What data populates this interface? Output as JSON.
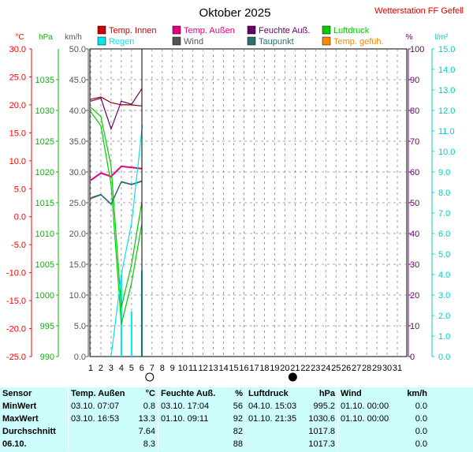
{
  "header": {
    "title": "Oktober 2025",
    "station": "Wetterstation FF Gefell"
  },
  "legend": [
    {
      "label": "Temp. Innen",
      "color": "#cc0000"
    },
    {
      "label": "Temp. Außen",
      "color": "#e6007e"
    },
    {
      "label": "Feuchte Auß.",
      "color": "#660066"
    },
    {
      "label": "Luftdruck",
      "color": "#00cc00"
    },
    {
      "label": "Regen",
      "color": "#00e5ee"
    },
    {
      "label": "Wind",
      "color": "#555555"
    },
    {
      "label": "Taupunkt",
      "color": "#2e6e6e"
    },
    {
      "label": "Temp. gefüh.",
      "color": "#ff8800"
    }
  ],
  "axis_units": {
    "celsius": "°C",
    "hpa": "hPa",
    "kmh": "km/h",
    "percent": "%",
    "rain": "l/m²"
  },
  "chart_data": {
    "type": "line",
    "x": [
      1,
      2,
      3,
      4,
      5,
      6
    ],
    "x_ticks": [
      "1",
      "2",
      "3",
      "4",
      "5",
      "6",
      "7",
      "8",
      "9",
      "10",
      "11",
      "12",
      "13",
      "14",
      "15",
      "16",
      "17",
      "18",
      "19",
      "20",
      "21",
      "22",
      "23",
      "24",
      "25",
      "26",
      "27",
      "28",
      "29",
      "30",
      "31"
    ],
    "axes": {
      "temp_c": {
        "range": [
          -25,
          30
        ],
        "ticks": [
          "30.0",
          "25.0",
          "20.0",
          "15.0",
          "10.0",
          "5.0",
          "0.0",
          "-5.0",
          "-10.0",
          "-15.0",
          "-20.0",
          "-25.0"
        ],
        "color": "#ff0000"
      },
      "pressure_hpa": {
        "range": [
          990,
          1040
        ],
        "ticks": [
          "1035",
          "1030",
          "1025",
          "1020",
          "1015",
          "1010",
          "1005",
          "1000",
          "995",
          "990"
        ],
        "color": "#00bb00"
      },
      "wind_kmh": {
        "range": [
          0,
          50
        ],
        "ticks": [
          "50.0",
          "45.0",
          "40.0",
          "35.0",
          "30.0",
          "25.0",
          "20.0",
          "15.0",
          "10.0",
          "5.0",
          "0.0"
        ],
        "color": "#555555"
      },
      "humidity_pct": {
        "range": [
          0,
          100
        ],
        "ticks": [
          "100",
          "90",
          "80",
          "70",
          "60",
          "50",
          "40",
          "30",
          "20",
          "10",
          "0"
        ],
        "color": "#660066"
      },
      "rain_lm2": {
        "range": [
          0,
          15
        ],
        "ticks": [
          "15.0",
          "14.0",
          "13.0",
          "12.0",
          "11.0",
          "10.0",
          "9.0",
          "8.0",
          "7.0",
          "6.0",
          "5.0",
          "4.0",
          "3.0",
          "2.0",
          "1.0",
          "0.0"
        ],
        "color": "#00cccc"
      }
    },
    "moon_phases": [
      {
        "day": 7,
        "phase": "full"
      },
      {
        "day": 21,
        "phase": "new"
      }
    ],
    "series": [
      {
        "name": "Temp. Innen",
        "axis": "temp_c",
        "color": "#8b0000",
        "x": [
          1,
          2,
          3,
          4,
          5,
          6
        ],
        "values": [
          21.0,
          21.4,
          20.4,
          20.0,
          20.0,
          19.8
        ]
      },
      {
        "name": "Temp. Außen",
        "axis": "temp_c",
        "color": "#e6007e",
        "x": [
          1,
          2,
          3,
          4,
          5,
          6
        ],
        "values": [
          6.5,
          7.8,
          7.2,
          9.0,
          8.8,
          8.6
        ]
      },
      {
        "name": "Feuchte Auß.",
        "axis": "humidity_pct",
        "color": "#660066",
        "x": [
          1,
          2,
          3,
          4,
          5,
          6
        ],
        "values": [
          83,
          84,
          74,
          83,
          82,
          87
        ]
      },
      {
        "name": "Luftdruck",
        "axis": "pressure_hpa",
        "color": "#00cc00",
        "x": [
          1,
          2,
          3,
          4,
          5,
          6
        ],
        "values": [
          1030.5,
          1029.0,
          1021.0,
          998.0,
          1005.0,
          1015.0
        ]
      },
      {
        "name": "Luftdruck",
        "axis": "pressure_hpa",
        "color": "#00cc00",
        "x": [
          1,
          2,
          3,
          4,
          5,
          6
        ],
        "values": [
          1029.8,
          1027.5,
          1018.0,
          995.2,
          1002.0,
          1011.5
        ]
      },
      {
        "name": "Taupunkt",
        "axis": "temp_c",
        "color": "#2e6e6e",
        "x": [
          1,
          2,
          3,
          4,
          5,
          6
        ],
        "values": [
          3.4,
          4.0,
          2.3,
          6.3,
          5.8,
          6.4
        ]
      },
      {
        "name": "Taupunkt",
        "axis": "temp_c",
        "color": "#2e6e6e",
        "x": [
          1,
          2,
          3,
          4,
          5,
          6
        ],
        "values": [
          3.2,
          3.9,
          2.2,
          6.2,
          5.7,
          6.3
        ]
      },
      {
        "name": "Regen",
        "axis": "rain_lm2",
        "color": "#00e5ee",
        "x": [
          3.0,
          4.0,
          5.0,
          6.0,
          6.05
        ],
        "values": [
          0.0,
          4.0,
          6.5,
          11.0,
          11.3
        ]
      }
    ],
    "rain_bars": {
      "axis": "rain_lm2",
      "color": "#00e5ee",
      "x": [
        4,
        5,
        6
      ],
      "values": [
        4.0,
        2.2,
        4.2
      ]
    }
  },
  "stats": {
    "headers": {
      "sensor": "Sensor",
      "temp": "Temp. Außen",
      "temp_unit": "°C",
      "hum": "Feuchte Auß.",
      "hum_unit": "%",
      "press": "Luftdruck",
      "press_unit": "hPa",
      "wind": "Wind",
      "wind_unit": "km/h"
    },
    "rows": [
      {
        "label": "MinWert",
        "temp_time": "03.10.  07:07",
        "temp_val": "0.8",
        "hum_time": "03.10.  17:04",
        "hum_val": "56",
        "press_time": "04.10.  15:03",
        "press_val": "995.2",
        "wind_time": "01.10.  00:00",
        "wind_val": "0.0"
      },
      {
        "label": "MaxWert",
        "temp_time": "03.10.  16:53",
        "temp_val": "13.3",
        "hum_time": "01.10.  09:11",
        "hum_val": "92",
        "press_time": "01.10.  21:35",
        "press_val": "1030.6",
        "wind_time": "01.10.  00:00",
        "wind_val": "0.0"
      },
      {
        "label": "Durchschnitt",
        "temp_time": "",
        "temp_val": "7.64",
        "hum_time": "",
        "hum_val": "82",
        "press_time": "",
        "press_val": "1017.8",
        "wind_time": "",
        "wind_val": "0.0"
      },
      {
        "label": "06.10.",
        "temp_time": "",
        "temp_val": "8.3",
        "hum_time": "",
        "hum_val": "88",
        "press_time": "",
        "press_val": "1017.3",
        "wind_time": "",
        "wind_val": "0.0"
      }
    ]
  }
}
